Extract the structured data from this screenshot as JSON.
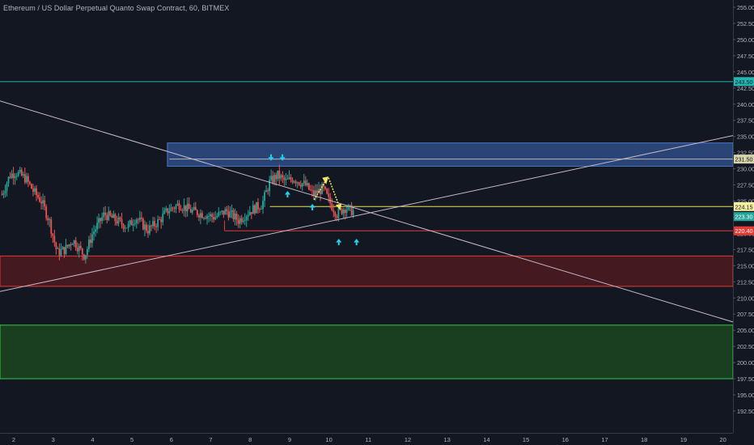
{
  "chart_title": "Ethereum / US Dollar Perpetual Quanto Swap Contract, 60, BITMEX",
  "chart_data": {
    "type": "candlestick",
    "symbol": "Ethereum / US Dollar Perpetual Quanto Swap Contract",
    "interval": "60",
    "exchange": "BITMEX",
    "ylim": [
      192.5,
      255.0
    ],
    "y_ticks": [
      "255.00",
      "252.50",
      "250.00",
      "247.50",
      "245.00",
      "242.50",
      "240.00",
      "237.50",
      "235.00",
      "232.50",
      "230.00",
      "227.50",
      "225.00",
      "222.50",
      "220.00",
      "217.50",
      "215.00",
      "212.50",
      "210.00",
      "207.50",
      "205.00",
      "202.50",
      "200.00",
      "197.50",
      "195.00",
      "192.50"
    ],
    "x_ticks": [
      {
        "label": "2",
        "day": 2
      },
      {
        "label": "3",
        "day": 3
      },
      {
        "label": "4",
        "day": 4
      },
      {
        "label": "5",
        "day": 5
      },
      {
        "label": "6",
        "day": 6
      },
      {
        "label": "7",
        "day": 7
      },
      {
        "label": "8",
        "day": 8
      },
      {
        "label": "9",
        "day": 9
      },
      {
        "label": "10",
        "day": 10
      },
      {
        "label": "11",
        "day": 11
      },
      {
        "label": "12",
        "day": 12
      },
      {
        "label": "13",
        "day": 13
      },
      {
        "label": "14",
        "day": 14
      },
      {
        "label": "15",
        "day": 15
      },
      {
        "label": "16",
        "day": 16
      },
      {
        "label": "17",
        "day": 17
      },
      {
        "label": "18",
        "day": 18
      },
      {
        "label": "19",
        "day": 19
      },
      {
        "label": "20",
        "day": 20
      }
    ],
    "price_path": [
      [
        1.7,
        226.0
      ],
      [
        1.9,
        229.0
      ],
      [
        2.05,
        229.5
      ],
      [
        2.3,
        228.5
      ],
      [
        2.5,
        226.5
      ],
      [
        2.7,
        225.0
      ],
      [
        2.9,
        222.0
      ],
      [
        3.1,
        217.0
      ],
      [
        3.3,
        217.5
      ],
      [
        3.5,
        219.0
      ],
      [
        3.8,
        216.5
      ],
      [
        4.0,
        220.0
      ],
      [
        4.3,
        223.0
      ],
      [
        4.6,
        222.0
      ],
      [
        4.9,
        221.0
      ],
      [
        5.1,
        222.5
      ],
      [
        5.4,
        220.5
      ],
      [
        5.7,
        222.0
      ],
      [
        5.9,
        223.5
      ],
      [
        6.2,
        224.5
      ],
      [
        6.5,
        223.5
      ],
      [
        6.8,
        223.0
      ],
      [
        7.1,
        222.5
      ],
      [
        7.4,
        223.5
      ],
      [
        7.7,
        222.0
      ],
      [
        8.0,
        223.5
      ],
      [
        8.3,
        224.5
      ],
      [
        8.5,
        228.0
      ],
      [
        8.7,
        229.0
      ],
      [
        8.9,
        228.0
      ],
      [
        9.1,
        228.5
      ],
      [
        9.4,
        227.5
      ],
      [
        9.6,
        226.0
      ],
      [
        9.85,
        227.0
      ],
      [
        10.0,
        225.0
      ],
      [
        10.2,
        223.0
      ],
      [
        10.4,
        224.0
      ],
      [
        10.65,
        223.3
      ]
    ],
    "horizontal_lines": [
      {
        "price": 243.5,
        "label": "243.50",
        "color": "#22b6b0"
      },
      {
        "price": 231.5,
        "label": "231.50",
        "color": "#b2b5be"
      },
      {
        "price": 224.15,
        "label": "224.15",
        "color": "#e8e35c"
      },
      {
        "price": 220.4,
        "label": "220.40",
        "color": "#e53935"
      }
    ],
    "current_price": {
      "label": "223.30",
      "color": "#26a69a"
    },
    "zones": [
      {
        "name": "supply zone",
        "from": 230.4,
        "to": 234.0,
        "color": "#2f4c85",
        "border": "#4a78c9"
      },
      {
        "name": "resistance-turned zone",
        "from": 211.8,
        "to": 216.5,
        "color": "#4b1a20",
        "border": "#e53935"
      },
      {
        "name": "demand zone",
        "from": 197.5,
        "to": 205.8,
        "color": "#1c4320",
        "border": "#2ecc40"
      }
    ],
    "trendlines": [
      {
        "from": [
          1.65,
          240.5
        ],
        "to": [
          20.3,
          206.2
        ],
        "color": "#c7b8c8"
      },
      {
        "from": [
          1.65,
          211.0
        ],
        "to": [
          20.3,
          235.2
        ],
        "color": "#c7b8c8"
      }
    ],
    "markers": [
      {
        "type": "arrow-down",
        "day": 8.53,
        "price": 231.8,
        "color": "#22d3ee"
      },
      {
        "type": "arrow-down",
        "day": 8.82,
        "price": 231.8,
        "color": "#22d3ee"
      },
      {
        "type": "arrow-up",
        "day": 8.95,
        "price": 226.0,
        "color": "#22d3ee"
      },
      {
        "type": "arrow-up",
        "day": 9.58,
        "price": 224.0,
        "color": "#22d3ee"
      },
      {
        "type": "arrow-up",
        "day": 10.25,
        "price": 218.6,
        "color": "#22d3ee"
      },
      {
        "type": "arrow-up",
        "day": 10.7,
        "price": 218.6,
        "color": "#22d3ee"
      }
    ]
  }
}
